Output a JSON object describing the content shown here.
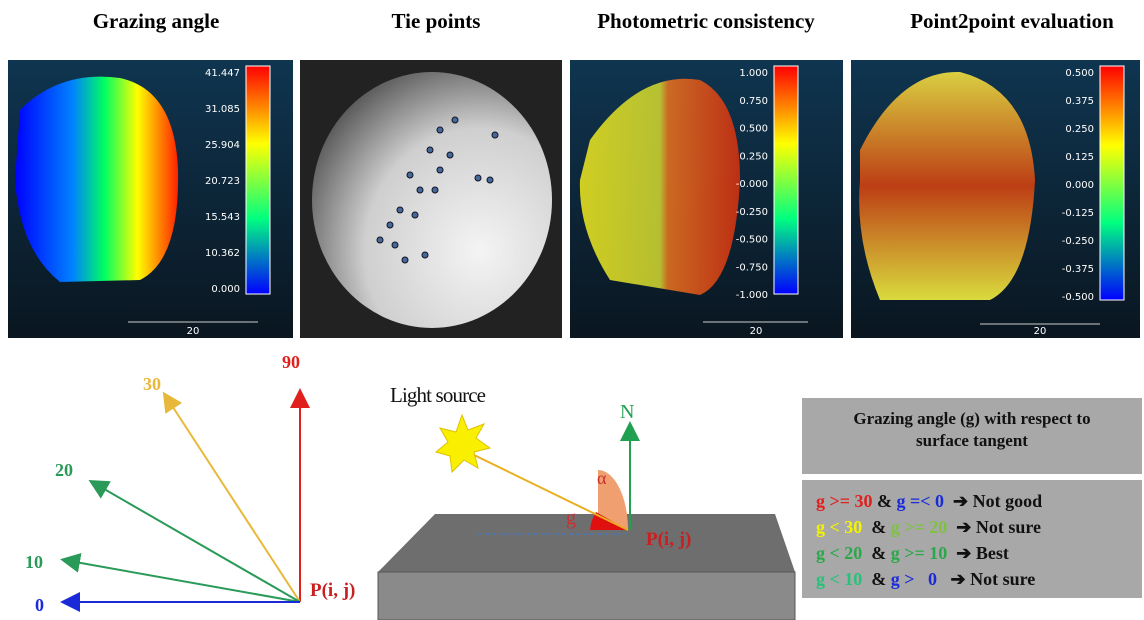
{
  "panels": [
    {
      "title": "Grazing angle",
      "colorbar_labels": [
        "41.447",
        "31.085",
        "25.904",
        "20.723",
        "15.543",
        "10.362",
        "0.000"
      ],
      "scale_label": "20"
    },
    {
      "title": "Tie points"
    },
    {
      "title": "Photometric consistency",
      "colorbar_labels": [
        "1.000",
        "0.750",
        "0.500",
        "0.250",
        "-0.000",
        "-0.250",
        "-0.500",
        "-0.750",
        "-1.000"
      ],
      "scale_label": "20"
    },
    {
      "title": "Point2point evaluation",
      "colorbar_labels": [
        "0.500",
        "0.375",
        "0.250",
        "0.125",
        "0.000",
        "-0.125",
        "-0.250",
        "-0.375",
        "-0.500"
      ],
      "scale_label": "20"
    }
  ],
  "angle_diagram": {
    "labels": [
      "90",
      "30",
      "20",
      "10",
      "0"
    ],
    "point": "P(i, j)"
  },
  "light_diagram": {
    "light": "Light source",
    "normal": "N",
    "alpha": "α",
    "g": "g",
    "point": "P(i, j)"
  },
  "legend": {
    "title": "Grazing angle (g) with respect to surface tangent",
    "rows": [
      [
        {
          "text": "g >= 30",
          "color": "#e0201c"
        },
        {
          "text": " & ",
          "color": "#111111"
        },
        {
          "text": "g =< 0",
          "color": "#1a2ad8"
        },
        {
          "text": "  ➔ Not good",
          "color": "#111111"
        }
      ],
      [
        {
          "text": "g < 30",
          "color": "#f4f400"
        },
        {
          "text": "  & ",
          "color": "#111111"
        },
        {
          "text": "g >= 20",
          "color": "#7fc241"
        },
        {
          "text": "  ➔ Not sure",
          "color": "#111111"
        }
      ],
      [
        {
          "text": "g < 20",
          "color": "#2aa84a"
        },
        {
          "text": "  & ",
          "color": "#111111"
        },
        {
          "text": "g >= 10",
          "color": "#2aa84a"
        },
        {
          "text": "  ➔ Best",
          "color": "#111111"
        }
      ],
      [
        {
          "text": "g < 10",
          "color": "#27c27a"
        },
        {
          "text": "  & ",
          "color": "#111111"
        },
        {
          "text": "g >   0",
          "color": "#1a2ad8"
        },
        {
          "text": "   ➔ Not sure",
          "color": "#111111"
        }
      ]
    ]
  }
}
